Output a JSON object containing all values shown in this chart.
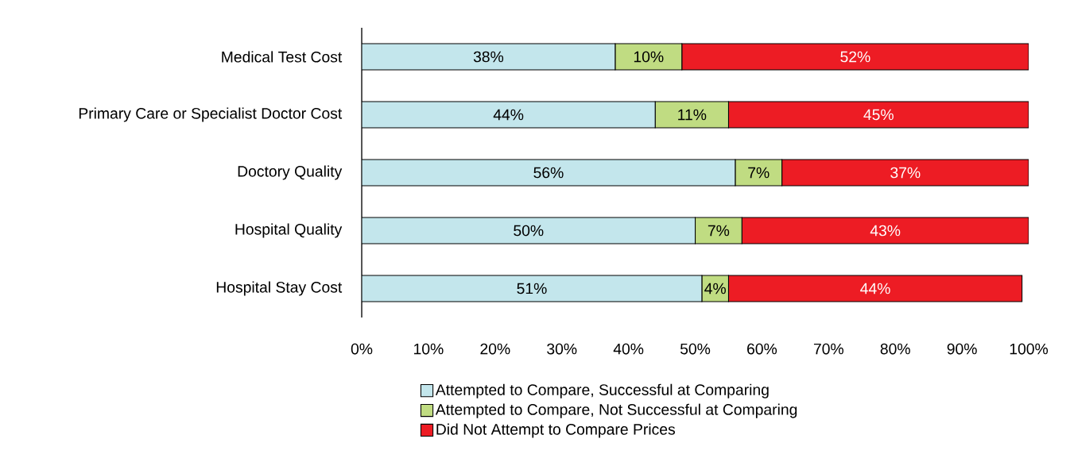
{
  "chart_data": {
    "type": "bar",
    "orientation": "horizontal",
    "stacked": true,
    "categories": [
      "Medical Test Cost",
      "Primary Care or Specialist Doctor Cost",
      "Doctory Quality",
      "Hospital Quality",
      "Hospital Stay Cost"
    ],
    "series": [
      {
        "name": "Attempted to Compare, Successful at Comparing",
        "color": "#c3e6ec",
        "values": [
          38,
          44,
          56,
          50,
          51
        ],
        "value_labels": [
          "38%",
          "44%",
          "56%",
          "50%",
          "51%"
        ]
      },
      {
        "name": "Attempted to Compare, Not Successful at Comparing",
        "color": "#c0dc82",
        "values": [
          10,
          11,
          7,
          7,
          4
        ],
        "value_labels": [
          "10%",
          "11%",
          "7%",
          "7%",
          "4%"
        ]
      },
      {
        "name": "Did Not Attempt to Compare Prices",
        "color": "#ed1c24",
        "values": [
          52,
          45,
          37,
          43,
          44
        ],
        "value_labels": [
          "52%",
          "45%",
          "37%",
          "43%",
          "44%"
        ]
      }
    ],
    "xlim": [
      0,
      100
    ],
    "xticks": [
      {
        "value": 0,
        "label": "0%"
      },
      {
        "value": 10,
        "label": "10%"
      },
      {
        "value": 20,
        "label": "20%"
      },
      {
        "value": 30,
        "label": "30%"
      },
      {
        "value": 40,
        "label": "40%"
      },
      {
        "value": 50,
        "label": "50%"
      },
      {
        "value": 60,
        "label": "60%"
      },
      {
        "value": 70,
        "label": "70%"
      },
      {
        "value": 80,
        "label": "80%"
      },
      {
        "value": 90,
        "label": "90%"
      },
      {
        "value": 100,
        "label": "100%"
      }
    ],
    "grid": false,
    "legend": "bottom"
  }
}
